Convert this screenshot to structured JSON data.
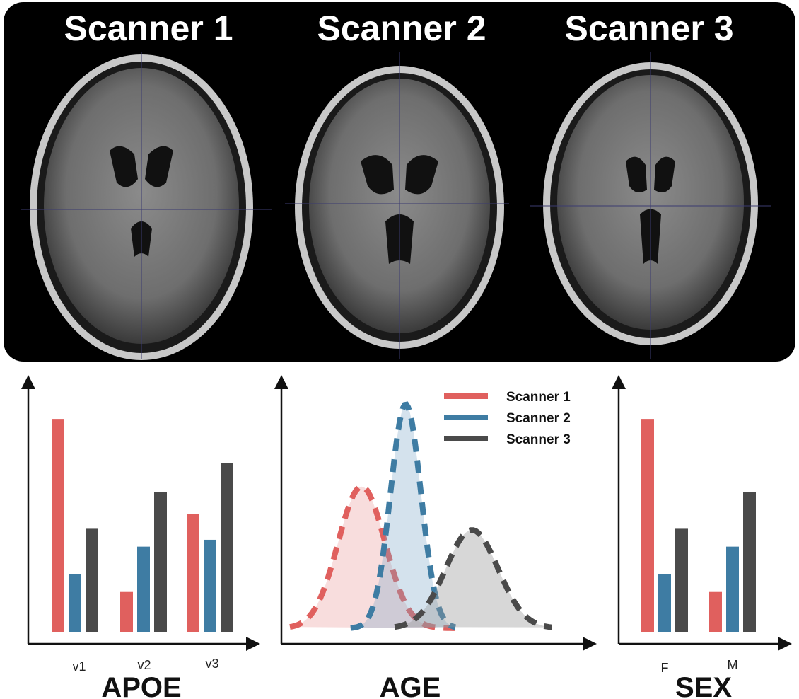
{
  "header": {
    "scanners": [
      "Scanner 1",
      "Scanner 2",
      "Scanner 3"
    ]
  },
  "colors": {
    "scanner1": "#e0605e",
    "scanner2": "#3e7ca3",
    "scanner3": "#4a4a4a"
  },
  "chart_data": [
    {
      "type": "bar",
      "title": "APOE",
      "categories": [
        "v1",
        "v2",
        "v3"
      ],
      "series": [
        {
          "name": "Scanner 1",
          "values": [
            310,
            58,
            172
          ]
        },
        {
          "name": "Scanner 2",
          "values": [
            84,
            124,
            134
          ]
        },
        {
          "name": "Scanner 3",
          "values": [
            150,
            204,
            246
          ]
        }
      ],
      "ylim": [
        0,
        340
      ]
    },
    {
      "type": "area",
      "title": "AGE",
      "legend": {
        "position": "top-right",
        "entries": [
          "Scanner 1",
          "Scanner 2",
          "Scanner 3"
        ]
      },
      "series": [
        {
          "name": "Scanner 1",
          "peak_x": 0.26,
          "peak_y": 0.62,
          "spread": 0.085
        },
        {
          "name": "Scanner 2",
          "peak_x": 0.42,
          "peak_y": 0.98,
          "spread": 0.055
        },
        {
          "name": "Scanner 3",
          "peak_x": 0.66,
          "peak_y": 0.43,
          "spread": 0.095
        }
      ]
    },
    {
      "type": "bar",
      "title": "SEX",
      "categories": [
        "F",
        "M"
      ],
      "series": [
        {
          "name": "Scanner 1",
          "values": [
            310,
            58
          ]
        },
        {
          "name": "Scanner 2",
          "values": [
            84,
            124
          ]
        },
        {
          "name": "Scanner 3",
          "values": [
            150,
            204
          ]
        }
      ],
      "ylim": [
        0,
        340
      ]
    }
  ]
}
